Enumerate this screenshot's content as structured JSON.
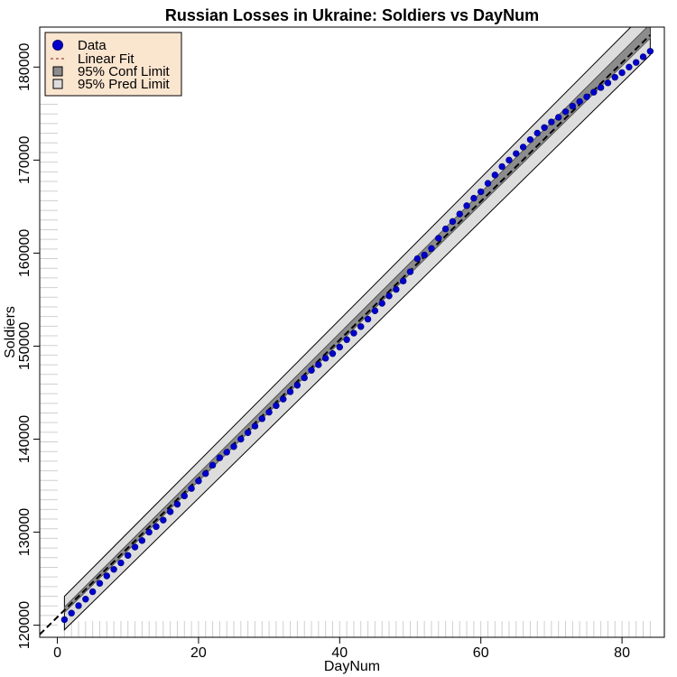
{
  "chart_data": {
    "type": "scatter",
    "title": "Russian Losses in Ukraine: Soldiers vs DayNum",
    "xlabel": "DayNum",
    "ylabel": "Soldiers",
    "xlim": [
      -2.5,
      86
    ],
    "ylim": [
      118700,
      184300
    ],
    "x_ticks": [
      0,
      20,
      40,
      60,
      80
    ],
    "y_ticks": [
      120000,
      130000,
      140000,
      150000,
      160000,
      170000,
      180000
    ],
    "x_tick_labels": [
      "0",
      "20",
      "40",
      "60",
      "80"
    ],
    "y_tick_labels": [
      "120000",
      "130000",
      "140000",
      "150000",
      "160000",
      "170000",
      "180000"
    ],
    "legend": {
      "position": "top-left",
      "entries": [
        "Data",
        "Linear Fit",
        "95% Conf Limit",
        "95% Pred Limit"
      ]
    },
    "colors": {
      "data": "#0000cc",
      "fit": "#000000",
      "conf_band": "#8c8c8c",
      "pred_band": "#dddddd",
      "legend_bg": "#fae5cf"
    },
    "fit": {
      "intercept": 120870,
      "slope": 745,
      "x_range": [
        -2.5,
        84
      ]
    },
    "conf_band": {
      "x": [
        1,
        84
      ],
      "lower": [
        121350,
        183100
      ],
      "upper": [
        121950,
        184650
      ]
    },
    "pred_band": {
      "x": [
        1,
        84
      ],
      "lower": [
        119500,
        181300
      ],
      "upper": [
        123100,
        186400
      ]
    },
    "series": [
      {
        "name": "Data",
        "x": [
          1,
          2,
          3,
          4,
          5,
          6,
          7,
          8,
          9,
          10,
          11,
          12,
          13,
          14,
          15,
          16,
          17,
          18,
          19,
          20,
          21,
          22,
          23,
          24,
          25,
          26,
          27,
          28,
          29,
          30,
          31,
          32,
          33,
          34,
          35,
          36,
          37,
          38,
          39,
          40,
          41,
          42,
          43,
          44,
          45,
          46,
          47,
          48,
          49,
          50,
          51,
          52,
          53,
          54,
          55,
          56,
          57,
          58,
          59,
          60,
          61,
          62,
          63,
          64,
          65,
          66,
          67,
          68,
          69,
          70,
          71,
          72,
          73,
          74,
          75,
          76,
          77,
          78,
          79,
          80,
          81,
          82,
          83,
          84
        ],
        "y": [
          120600,
          121300,
          122100,
          122800,
          123600,
          124500,
          125300,
          126000,
          126700,
          127500,
          128400,
          129100,
          130000,
          130600,
          131300,
          132200,
          133000,
          133900,
          134700,
          135500,
          136300,
          137200,
          138000,
          138600,
          139200,
          140000,
          140700,
          141400,
          142200,
          142900,
          143600,
          144300,
          145100,
          145800,
          146600,
          147400,
          148000,
          148700,
          149200,
          149900,
          150700,
          151400,
          152100,
          152900,
          153800,
          154600,
          155400,
          156100,
          157000,
          158000,
          159400,
          159800,
          160500,
          161600,
          162600,
          163400,
          164200,
          165100,
          165900,
          166600,
          167500,
          168400,
          169300,
          170000,
          170700,
          171400,
          172200,
          172900,
          173500,
          174100,
          174600,
          175200,
          175800,
          176300,
          176800,
          177300,
          177800,
          178300,
          178900,
          179400,
          180000,
          180500,
          181100,
          181700
        ]
      }
    ]
  }
}
